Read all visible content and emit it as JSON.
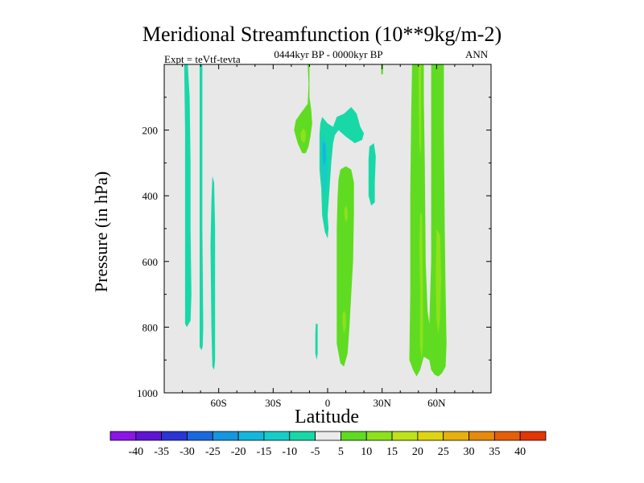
{
  "chart_data": {
    "type": "contour",
    "title": "Meridional Streamfunction (10**9kg/m-2)",
    "subtitle": "0444kyr BP - 0000kyr BP",
    "left_string": "Expt = teVtf-tevta",
    "right_string": "ANN",
    "xlabel": "Latitude",
    "ylabel": "Pressure (in hPa)",
    "xlim": [
      -90,
      90
    ],
    "ylim": [
      1000,
      0
    ],
    "y_reversed": true,
    "x_ticks": [
      {
        "value": -60,
        "label": "60S"
      },
      {
        "value": -30,
        "label": "30S"
      },
      {
        "value": 0,
        "label": "0"
      },
      {
        "value": 30,
        "label": "30N"
      },
      {
        "value": 60,
        "label": "60N"
      }
    ],
    "y_ticks": [
      {
        "value": 200,
        "label": "200"
      },
      {
        "value": 400,
        "label": "400"
      },
      {
        "value": 600,
        "label": "600"
      },
      {
        "value": 800,
        "label": "800"
      },
      {
        "value": 1000,
        "label": "1000"
      }
    ],
    "background_color": "#e8e8e8",
    "colorbar": {
      "levels": [
        "-40",
        "-35",
        "-30",
        "-25",
        "-20",
        "-15",
        "-10",
        "-5",
        "5",
        "10",
        "15",
        "20",
        "25",
        "30",
        "35",
        "40"
      ],
      "colors": [
        "#8a15e6",
        "#5f14d4",
        "#2a35d6",
        "#1a68dd",
        "#1497e0",
        "#13b6dc",
        "#16cdc8",
        "#18d8a8",
        "#ebebeb",
        "#5fdc21",
        "#8ce21c",
        "#bde31a",
        "#dfd412",
        "#e6b00e",
        "#e68a0c",
        "#e55f08",
        "#e23604"
      ]
    },
    "regions": [
      {
        "level": "-10 to -5",
        "color": "#18d8a8",
        "points": [
          [
            -79,
            0
          ],
          [
            -77,
            0
          ],
          [
            -76,
            100
          ],
          [
            -75.5,
            300
          ],
          [
            -75.5,
            500
          ],
          [
            -75,
            700
          ],
          [
            -75.5,
            780
          ],
          [
            -77.5,
            800
          ],
          [
            -78.5,
            790
          ],
          [
            -78.5,
            650
          ],
          [
            -78.5,
            400
          ],
          [
            -78.5,
            200
          ]
        ]
      },
      {
        "level": "-10 to -5",
        "color": "#18d8a8",
        "points": [
          [
            -70.5,
            0
          ],
          [
            -69,
            0
          ],
          [
            -69,
            200
          ],
          [
            -69,
            500
          ],
          [
            -68.5,
            800
          ],
          [
            -68.8,
            860
          ],
          [
            -69.5,
            870
          ],
          [
            -70.5,
            860
          ],
          [
            -70.5,
            600
          ],
          [
            -70.5,
            300
          ]
        ]
      },
      {
        "level": "-10 to -5",
        "color": "#18d8a8",
        "points": [
          [
            -63.5,
            340
          ],
          [
            -62.5,
            360
          ],
          [
            -62,
            500
          ],
          [
            -62,
            700
          ],
          [
            -62,
            900
          ],
          [
            -62.5,
            930
          ],
          [
            -63.5,
            920
          ],
          [
            -64,
            800
          ],
          [
            -64.5,
            550
          ],
          [
            -64,
            420
          ]
        ]
      },
      {
        "level": "-10 to -5",
        "color": "#18d8a8",
        "points": [
          [
            -3,
            160
          ],
          [
            0,
            180
          ],
          [
            3,
            190
          ],
          [
            5,
            160
          ],
          [
            9,
            150
          ],
          [
            13,
            130
          ],
          [
            16,
            150
          ],
          [
            18,
            190
          ],
          [
            20,
            210
          ],
          [
            19,
            230
          ],
          [
            15,
            240
          ],
          [
            10,
            220
          ],
          [
            6,
            200
          ],
          [
            4,
            215
          ],
          [
            3,
            240
          ],
          [
            2,
            300
          ],
          [
            1,
            380
          ],
          [
            0,
            460
          ],
          [
            0.5,
            500
          ],
          [
            0,
            530
          ],
          [
            -1.5,
            510
          ],
          [
            -3,
            460
          ],
          [
            -3.5,
            380
          ],
          [
            -4.5,
            320
          ],
          [
            -4.5,
            260
          ],
          [
            -4.5,
            210
          ],
          [
            -4,
            180
          ]
        ]
      },
      {
        "level": "-10 to -5",
        "color": "#18d8a8",
        "points": [
          [
            23,
            250
          ],
          [
            25.5,
            240
          ],
          [
            26.5,
            280
          ],
          [
            26,
            360
          ],
          [
            26,
            420
          ],
          [
            24,
            430
          ],
          [
            22.5,
            400
          ],
          [
            22.5,
            330
          ],
          [
            22.5,
            290
          ]
        ]
      },
      {
        "level": "-10 to -5",
        "color": "#18d8a8",
        "points": [
          [
            -6.5,
            790
          ],
          [
            -5.5,
            790
          ],
          [
            -5.5,
            880
          ],
          [
            -6,
            900
          ],
          [
            -6.8,
            880
          ],
          [
            -6.8,
            820
          ]
        ]
      },
      {
        "level": "-15 to -10",
        "color": "#16cdc8",
        "points": [
          [
            -2.5,
            210
          ],
          [
            -1,
            240
          ],
          [
            0,
            300
          ],
          [
            -0.5,
            360
          ],
          [
            -2,
            400
          ],
          [
            -3,
            360
          ],
          [
            -3.5,
            290
          ],
          [
            -3.5,
            240
          ]
        ]
      },
      {
        "level": "-20 to -15",
        "color": "#13b6dc",
        "points": [
          [
            -2,
            235
          ],
          [
            -1,
            250
          ],
          [
            -1,
            290
          ],
          [
            -2,
            310
          ],
          [
            -2.8,
            280
          ],
          [
            -2.8,
            245
          ]
        ]
      },
      {
        "level": "5 to 10",
        "color": "#5fdc21",
        "points": [
          [
            -11,
            0
          ],
          [
            -10,
            0
          ],
          [
            -10,
            60
          ],
          [
            -10,
            100
          ],
          [
            -9,
            140
          ],
          [
            -8.5,
            180
          ],
          [
            -9.5,
            220
          ],
          [
            -10.5,
            250
          ],
          [
            -12,
            270
          ],
          [
            -14,
            270
          ],
          [
            -16.5,
            240
          ],
          [
            -18.5,
            200
          ],
          [
            -17.5,
            170
          ],
          [
            -15,
            150
          ],
          [
            -11,
            120
          ],
          [
            -10.5,
            60
          ]
        ]
      },
      {
        "level": "5 to 10",
        "color": "#5fdc21",
        "points": [
          [
            29.5,
            0
          ],
          [
            30.5,
            0
          ],
          [
            30.5,
            30
          ],
          [
            29.5,
            30
          ]
        ]
      },
      {
        "level": "5 to 10",
        "color": "#5fdc21",
        "points": [
          [
            7,
            320
          ],
          [
            10,
            310
          ],
          [
            13,
            320
          ],
          [
            14.5,
            360
          ],
          [
            14.5,
            450
          ],
          [
            14,
            600
          ],
          [
            13,
            700
          ],
          [
            12,
            800
          ],
          [
            11,
            880
          ],
          [
            9,
            920
          ],
          [
            7,
            910
          ],
          [
            5,
            850
          ],
          [
            5,
            700
          ],
          [
            5,
            600
          ],
          [
            5,
            500
          ],
          [
            5.5,
            400
          ],
          [
            6,
            350
          ]
        ]
      },
      {
        "level": "5 to 10",
        "color": "#5fdc21",
        "points": [
          [
            46.5,
            0
          ],
          [
            50,
            0
          ],
          [
            53,
            0
          ],
          [
            53,
            100
          ],
          [
            53.5,
            300
          ],
          [
            54,
            600
          ],
          [
            55,
            750
          ],
          [
            56,
            790
          ],
          [
            57,
            600
          ],
          [
            57,
            300
          ],
          [
            57,
            0
          ],
          [
            62,
            0
          ],
          [
            64,
            0
          ],
          [
            64,
            200
          ],
          [
            64.5,
            500
          ],
          [
            65,
            700
          ],
          [
            65.5,
            850
          ],
          [
            65,
            920
          ],
          [
            63,
            940
          ],
          [
            61,
            950
          ],
          [
            59,
            945
          ],
          [
            57,
            930
          ],
          [
            56,
            900
          ],
          [
            53,
            890
          ],
          [
            51,
            930
          ],
          [
            49,
            950
          ],
          [
            47,
            930
          ],
          [
            45,
            900
          ],
          [
            45.5,
            700
          ],
          [
            45.5,
            400
          ],
          [
            46,
            150
          ]
        ]
      },
      {
        "level": "10 to 15",
        "color": "#8ce21c",
        "points": [
          [
            -13.5,
            195
          ],
          [
            -12,
            205
          ],
          [
            -12,
            225
          ],
          [
            -13,
            240
          ],
          [
            -14.5,
            230
          ],
          [
            -15,
            212
          ]
        ]
      },
      {
        "level": "10 to 15",
        "color": "#8ce21c",
        "points": [
          [
            10,
            430
          ],
          [
            11,
            445
          ],
          [
            11,
            470
          ],
          [
            10,
            480
          ],
          [
            9.2,
            460
          ],
          [
            9.2,
            440
          ]
        ]
      },
      {
        "level": "10 to 15",
        "color": "#8ce21c",
        "points": [
          [
            9,
            750
          ],
          [
            10,
            760
          ],
          [
            10,
            800
          ],
          [
            9,
            820
          ],
          [
            8.2,
            790
          ],
          [
            8.2,
            760
          ]
        ]
      },
      {
        "level": "10 to 15",
        "color": "#8ce21c",
        "points": [
          [
            50,
            0
          ],
          [
            51.5,
            0
          ],
          [
            51.5,
            150
          ],
          [
            51.5,
            250
          ],
          [
            51,
            280
          ],
          [
            50.5,
            240
          ],
          [
            50.2,
            120
          ]
        ]
      },
      {
        "level": "10 to 15",
        "color": "#8ce21c",
        "points": [
          [
            51,
            450
          ],
          [
            52,
            460
          ],
          [
            52.5,
            700
          ],
          [
            52.5,
            850
          ],
          [
            51.8,
            900
          ],
          [
            50.8,
            850
          ],
          [
            51,
            700
          ],
          [
            50.5,
            550
          ]
        ]
      },
      {
        "level": "10 to 15",
        "color": "#8ce21c",
        "points": [
          [
            60,
            500
          ],
          [
            62,
            520
          ],
          [
            62.5,
            650
          ],
          [
            62,
            770
          ],
          [
            61,
            820
          ],
          [
            60,
            780
          ],
          [
            59.5,
            650
          ]
        ]
      }
    ]
  }
}
